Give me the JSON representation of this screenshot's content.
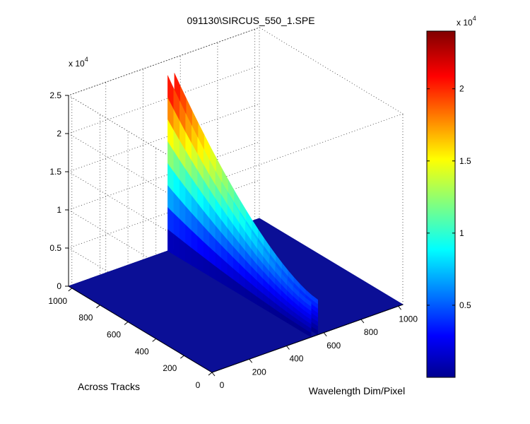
{
  "chart_data": {
    "type": "surface",
    "title": "091130\\SIRCUS_550_1.SPE",
    "xlabel": "Wavelength Dim/Pixel",
    "ylabel": "Across Tracks",
    "zlabel": "",
    "z_exponent_label": "x 10",
    "z_exponent_power": "4",
    "xlim": [
      0,
      1024
    ],
    "ylim": [
      0,
      1024
    ],
    "zlim": [
      0,
      25000
    ],
    "x_ticks": [
      "0",
      "200",
      "400",
      "600",
      "800",
      "1000"
    ],
    "x_tick_values": [
      0,
      200,
      400,
      600,
      800,
      1000
    ],
    "y_ticks": [
      "0",
      "200",
      "400",
      "600",
      "800",
      "1000"
    ],
    "y_tick_values": [
      0,
      200,
      400,
      600,
      800,
      1000
    ],
    "z_ticks": [
      "0",
      "0.5",
      "1",
      "1.5",
      "2",
      "2.5"
    ],
    "z_tick_values": [
      0,
      5000,
      10000,
      15000,
      20000,
      25000
    ],
    "grid": true,
    "baseline_value": 0,
    "peak": {
      "x": 550,
      "y_range": [
        0,
        1024
      ],
      "max_value": 23000
    },
    "colorbar": {
      "colormap": "jet",
      "range": [
        0,
        24000
      ],
      "ticks": [
        "0.5",
        "1",
        "1.5",
        "2"
      ],
      "tick_values": [
        5000,
        10000,
        15000,
        20000
      ],
      "exponent_label": "x 10",
      "exponent_power": "4"
    },
    "colors": {
      "surface_base": "#0b0f96",
      "background": "#ffffff",
      "axis": "#000000"
    }
  }
}
